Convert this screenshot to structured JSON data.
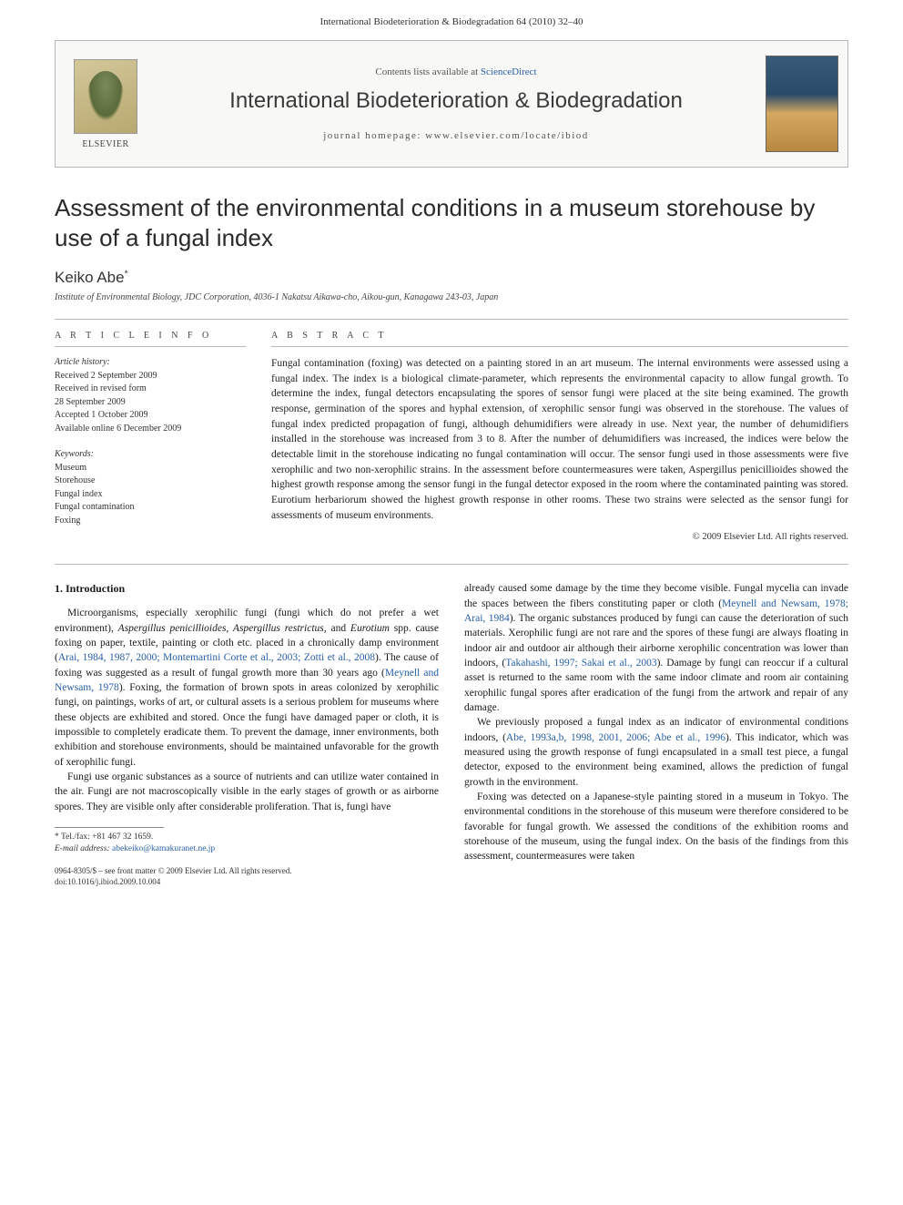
{
  "running_header": "International Biodeterioration & Biodegradation 64 (2010) 32–40",
  "banner": {
    "publisher": "ELSEVIER",
    "contents_prefix": "Contents lists available at ",
    "contents_link": "ScienceDirect",
    "journal": "International Biodeterioration & Biodegradation",
    "homepage_label": "journal homepage: ",
    "homepage_url": "www.elsevier.com/locate/ibiod"
  },
  "article": {
    "title": "Assessment of the environmental conditions in a museum storehouse by use of a fungal index",
    "author": "Keiko Abe",
    "author_mark": "*",
    "affiliation": "Institute of Environmental Biology, JDC Corporation, 4036-1 Nakatsu Aikawa-cho, Aikou-gun, Kanagawa 243-03, Japan"
  },
  "meta": {
    "info_label": "A R T I C L E  I N F O",
    "abstract_label": "A B S T R A C T",
    "history_heading": "Article history:",
    "history": [
      "Received 2 September 2009",
      "Received in revised form",
      "28 September 2009",
      "Accepted 1 October 2009",
      "Available online 6 December 2009"
    ],
    "keywords_heading": "Keywords:",
    "keywords": [
      "Museum",
      "Storehouse",
      "Fungal index",
      "Fungal contamination",
      "Foxing"
    ]
  },
  "abstract": "Fungal contamination (foxing) was detected on a painting stored in an art museum. The internal environments were assessed using a fungal index. The index is a biological climate-parameter, which represents the environmental capacity to allow fungal growth. To determine the index, fungal detectors encapsulating the spores of sensor fungi were placed at the site being examined. The growth response, germination of the spores and hyphal extension, of xerophilic sensor fungi was observed in the storehouse. The values of fungal index predicted propagation of fungi, although dehumidifiers were already in use. Next year, the number of dehumidifiers installed in the storehouse was increased from 3 to 8. After the number of dehumidifiers was increased, the indices were below the detectable limit in the storehouse indicating no fungal contamination will occur. The sensor fungi used in those assessments were five xerophilic and two non-xerophilic strains. In the assessment before countermeasures were taken, Aspergillus penicillioides showed the highest growth response among the sensor fungi in the fungal detector exposed in the room where the contaminated painting was stored. Eurotium herbariorum showed the highest growth response in other rooms. These two strains were selected as the sensor fungi for assessments of museum environments.",
  "copyright": "© 2009 Elsevier Ltd. All rights reserved.",
  "introduction": {
    "heading": "1. Introduction",
    "col1_p1_a": "Microorganisms, especially xerophilic fungi (fungi which do not prefer a wet environment), ",
    "col1_p1_b": "Aspergillus penicillioides, Aspergillus restrictus",
    "col1_p1_c": ", and ",
    "col1_p1_d": "Eurotium",
    "col1_p1_e": " spp. cause foxing on paper, textile, painting or cloth etc. placed in a chronically damp environment (",
    "col1_p1_cite1": "Arai, 1984, 1987, 2000; Montemartini Corte et al., 2003; Zotti et al., 2008",
    "col1_p1_f": "). The cause of foxing was suggested as a result of fungal growth more than 30 years ago (",
    "col1_p1_cite2": "Meynell and Newsam, 1978",
    "col1_p1_g": "). Foxing, the formation of brown spots in areas colonized by xerophilic fungi, on paintings, works of art, or cultural assets is a serious problem for museums where these objects are exhibited and stored. Once the fungi have damaged paper or cloth, it is impossible to completely eradicate them. To prevent the damage, inner environments, both exhibition and storehouse environments, should be maintained unfavorable for the growth of xerophilic fungi.",
    "col1_p2": "Fungi use organic substances as a source of nutrients and can utilize water contained in the air. Fungi are not macroscopically visible in the early stages of growth or as airborne spores. They are visible only after considerable proliferation. That is, fungi have",
    "col2_p1_a": "already caused some damage by the time they become visible. Fungal mycelia can invade the spaces between the fibers constituting paper or cloth (",
    "col2_p1_cite1": "Meynell and Newsam, 1978; Arai, 1984",
    "col2_p1_b": "). The organic substances produced by fungi can cause the deterioration of such materials. Xerophilic fungi are not rare and the spores of these fungi are always floating in indoor air and outdoor air although their airborne xerophilic concentration was lower than indoors, (",
    "col2_p1_cite2": "Takahashi, 1997; Sakai et al., 2003",
    "col2_p1_c": "). Damage by fungi can reoccur if a cultural asset is returned to the same room with the same indoor climate and room air containing xerophilic fungal spores after eradication of the fungi from the artwork and repair of any damage.",
    "col2_p2_a": "We previously proposed a fungal index as an indicator of environmental conditions indoors, (",
    "col2_p2_cite": "Abe, 1993a,b, 1998, 2001, 2006; Abe et al., 1996",
    "col2_p2_b": "). This indicator, which was measured using the growth response of fungi encapsulated in a small test piece, a fungal detector, exposed to the environment being examined, allows the prediction of fungal growth in the environment.",
    "col2_p3": "Foxing was detected on a Japanese-style painting stored in a museum in Tokyo. The environmental conditions in the storehouse of this museum were therefore considered to be favorable for fungal growth. We assessed the conditions of the exhibition rooms and storehouse of the museum, using the fungal index. On the basis of the findings from this assessment, countermeasures were taken"
  },
  "footnote": {
    "tel": "* Tel./fax: +81 467 32 1659.",
    "email_label": "E-mail address: ",
    "email": "abekeiko@kamakuranet.ne.jp"
  },
  "pub_footer": {
    "line1": "0964-8305/$ – see front matter © 2009 Elsevier Ltd. All rights reserved.",
    "line2": "doi:10.1016/j.ibiod.2009.10.004"
  },
  "colors": {
    "link": "#2860a8",
    "text": "#1a1a1a",
    "rule": "#bbbbbb",
    "banner_bg": "#f8f8f6"
  }
}
